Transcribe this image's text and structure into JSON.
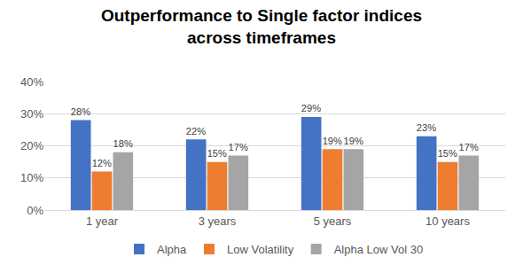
{
  "chart_data": {
    "type": "bar",
    "title": "Outperformance to Single factor indices\nacross timeframes",
    "categories": [
      "1 year",
      "3 years",
      "5 years",
      "10 years"
    ],
    "series": [
      {
        "name": "Alpha",
        "color": "#4472c4",
        "values": [
          28,
          22,
          29,
          23
        ],
        "value_labels": [
          "28%",
          "22%",
          "29%",
          "23%"
        ]
      },
      {
        "name": "Low Volatility",
        "color": "#ed7d31",
        "values": [
          12,
          15,
          19,
          15
        ],
        "value_labels": [
          "12%",
          "15%",
          "19%",
          "15%"
        ]
      },
      {
        "name": "Alpha Low Vol 30",
        "color": "#a5a5a5",
        "values": [
          18,
          17,
          19,
          17
        ],
        "value_labels": [
          "18%",
          "17%",
          "19%",
          "17%"
        ]
      }
    ],
    "ylim": [
      0,
      40
    ],
    "yticks": [
      {
        "value": 0,
        "label": "0%"
      },
      {
        "value": 10,
        "label": "10%"
      },
      {
        "value": 20,
        "label": "20%"
      },
      {
        "value": 30,
        "label": "30%"
      },
      {
        "value": 40,
        "label": "40%"
      }
    ],
    "grid": true,
    "legend": "bottom",
    "data_labels": true
  }
}
